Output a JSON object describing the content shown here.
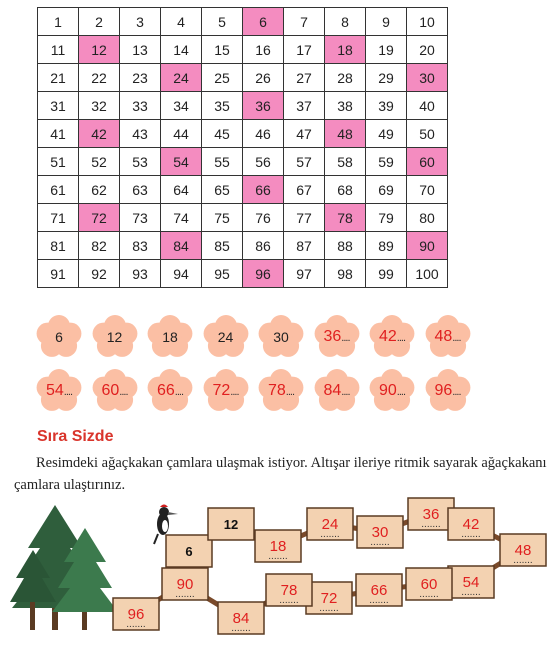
{
  "number_grid": {
    "rows": [
      [
        1,
        2,
        3,
        4,
        5,
        6,
        7,
        8,
        9,
        10
      ],
      [
        11,
        12,
        13,
        14,
        15,
        16,
        17,
        18,
        19,
        20
      ],
      [
        21,
        22,
        23,
        24,
        25,
        26,
        27,
        28,
        29,
        30
      ],
      [
        31,
        32,
        33,
        34,
        35,
        36,
        37,
        38,
        39,
        40
      ],
      [
        41,
        42,
        43,
        44,
        45,
        46,
        47,
        48,
        49,
        50
      ],
      [
        51,
        52,
        53,
        54,
        55,
        56,
        57,
        58,
        59,
        60
      ],
      [
        61,
        62,
        63,
        64,
        65,
        66,
        67,
        68,
        69,
        70
      ],
      [
        71,
        72,
        73,
        74,
        75,
        76,
        77,
        78,
        79,
        80
      ],
      [
        81,
        82,
        83,
        84,
        85,
        86,
        87,
        88,
        89,
        90
      ],
      [
        91,
        92,
        93,
        94,
        95,
        96,
        97,
        98,
        99,
        100
      ]
    ],
    "highlighted": [
      6,
      12,
      18,
      24,
      30,
      36,
      42,
      48,
      54,
      60,
      66,
      72,
      78,
      84,
      90,
      96
    ],
    "highlight_color": "#f48cc0"
  },
  "flowers": {
    "color": "#fbbfa4",
    "row1": [
      {
        "value": "6",
        "handwritten": false
      },
      {
        "value": "12",
        "handwritten": false
      },
      {
        "value": "18",
        "handwritten": false
      },
      {
        "value": "24",
        "handwritten": false
      },
      {
        "value": "30",
        "handwritten": false
      },
      {
        "value": "36",
        "handwritten": true
      },
      {
        "value": "42",
        "handwritten": true
      },
      {
        "value": "48",
        "handwritten": true
      }
    ],
    "row2": [
      {
        "value": "54",
        "handwritten": true
      },
      {
        "value": "60",
        "handwritten": true
      },
      {
        "value": "66",
        "handwritten": true
      },
      {
        "value": "72",
        "handwritten": true
      },
      {
        "value": "78",
        "handwritten": true
      },
      {
        "value": "84",
        "handwritten": true
      },
      {
        "value": "90",
        "handwritten": true
      },
      {
        "value": "96",
        "handwritten": true
      }
    ]
  },
  "section": {
    "title": "Sıra Sizde",
    "title_color": "#d9342b",
    "instruction": "Resimdeki ağaçkakan çamlara ulaşmak istiyor. Altışar ileriye ritmik sayarak ağaçkakanı çamlara ulaştırınız."
  },
  "planks": {
    "printed": [
      "6",
      "12"
    ],
    "answers": [
      "18",
      "24",
      "30",
      "36",
      "42",
      "48",
      "54",
      "60",
      "66",
      "72",
      "78",
      "84",
      "90",
      "96"
    ],
    "answer_color": "#e02020",
    "plank_color": "#f3d2b1"
  }
}
